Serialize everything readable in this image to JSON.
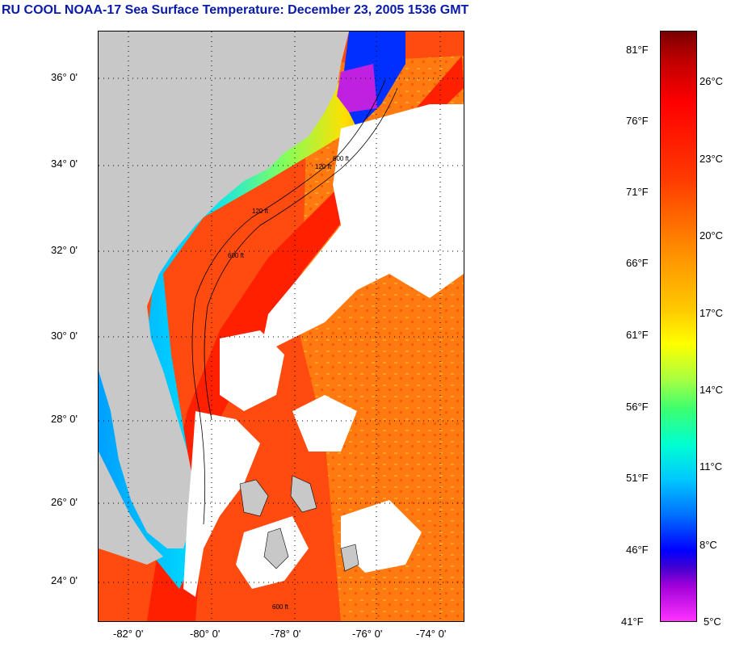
{
  "title": "RU COOL  NOAA-17  Sea Surface Temperature:  December 23, 2005 1536 GMT",
  "lat_labels": [
    "36° 0'",
    "34° 0'",
    "32° 0'",
    "30° 0'",
    "28° 0'",
    "26° 0'",
    "24° 0'"
  ],
  "lon_labels": [
    "-82° 0'",
    "-80° 0'",
    "-78° 0'",
    "-76° 0'",
    "-74° 0'"
  ],
  "isobath_labels": [
    "120 ft",
    "600 ft",
    "600 ft",
    "120 ft",
    "600 ft"
  ],
  "colorbar": {
    "fahrenheit": [
      "81°F",
      "76°F",
      "71°F",
      "66°F",
      "61°F",
      "56°F",
      "51°F",
      "46°F",
      "41°F"
    ],
    "celsius": [
      "26°C",
      "23°C",
      "20°C",
      "17°C",
      "14°C",
      "11°C",
      "8°C",
      "5°C"
    ]
  },
  "colors": {
    "land": "#c8c8c8",
    "cloud": "#ffffff",
    "title": "#0a1aa8"
  }
}
